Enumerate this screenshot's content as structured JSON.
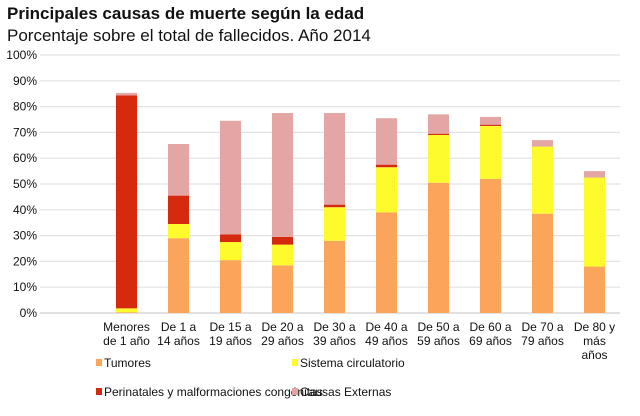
{
  "chart_data": {
    "type": "bar",
    "stacked": true,
    "title": "Principales causas de muerte según la edad",
    "subtitle": "Porcentaje sobre el total de fallecidos. Año 2014",
    "xlabel": "",
    "ylabel": "",
    "ylim": [
      0,
      100
    ],
    "yticks": [
      "0%",
      "10%",
      "20%",
      "30%",
      "40%",
      "50%",
      "60%",
      "70%",
      "80%",
      "90%",
      "100%"
    ],
    "grid": true,
    "legend_position": "bottom",
    "categories": [
      [
        "Menores",
        "de 1 año"
      ],
      [
        "De 1 a",
        "14 años"
      ],
      [
        "De 15 a",
        "19 años"
      ],
      [
        "De 20 a",
        "29 años"
      ],
      [
        "De 30 a",
        "39 años"
      ],
      [
        "De 40 a",
        "49 años"
      ],
      [
        "De 50 a",
        "59 años"
      ],
      [
        "De 60 a",
        "69 años"
      ],
      [
        "De 70 a",
        "79 años"
      ],
      [
        "De 80 y",
        "más",
        "años"
      ]
    ],
    "series": [
      {
        "name": "Tumores",
        "color": "#FBA55A",
        "values": [
          0.3,
          29,
          20.5,
          18.5,
          28,
          39,
          50.5,
          52,
          38.5,
          18
        ]
      },
      {
        "name": "Sistema circulatorio",
        "color": "#FEFB2D",
        "values": [
          1.5,
          5.5,
          7,
          8,
          13,
          17.5,
          18.5,
          20.5,
          26,
          34.5
        ]
      },
      {
        "name": "Perinatales y malformaciones congénitas",
        "color": "#D62A0F",
        "values": [
          82.5,
          11,
          3,
          3,
          1,
          1,
          0.5,
          0.5,
          0,
          0
        ]
      },
      {
        "name": "Causas Externas",
        "color": "#E3A6A4",
        "values": [
          1,
          20,
          44,
          48,
          35.5,
          18,
          7.5,
          3,
          2.5,
          2.5
        ]
      }
    ]
  }
}
